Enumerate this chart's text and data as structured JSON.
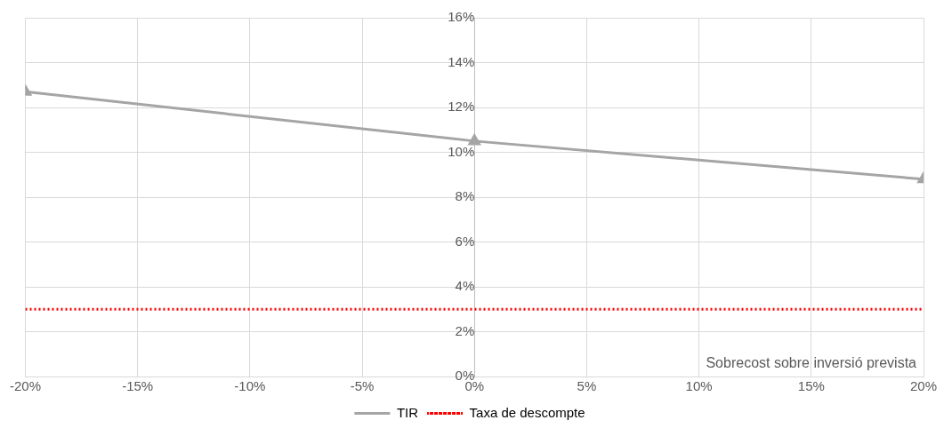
{
  "chart_data": {
    "type": "line",
    "xlabel": "Sobrecost sobre inversió prevista",
    "x": [
      -20,
      0,
      20
    ],
    "series": [
      {
        "name": "TIR",
        "color": "#a5a5a5",
        "values": [
          12.7,
          10.5,
          8.8
        ],
        "marker": "triangle",
        "line_style": "solid"
      },
      {
        "name": "Taxa de descompte",
        "color": "#ff0000",
        "values": [
          3,
          3,
          3
        ],
        "marker": "none",
        "line_style": "dotted"
      }
    ],
    "xlim": [
      -20,
      20
    ],
    "xticks": [
      {
        "value": -20,
        "label": "-20%"
      },
      {
        "value": -15,
        "label": "-15%"
      },
      {
        "value": -10,
        "label": "-10%"
      },
      {
        "value": -5,
        "label": "-5%"
      },
      {
        "value": 0,
        "label": "0%"
      },
      {
        "value": 5,
        "label": "5%"
      },
      {
        "value": 10,
        "label": "10%"
      },
      {
        "value": 15,
        "label": "15%"
      },
      {
        "value": 20,
        "label": "20%"
      }
    ],
    "ylim": [
      0,
      16
    ],
    "yticks": [
      {
        "value": 0,
        "label": "0%"
      },
      {
        "value": 2,
        "label": "2%"
      },
      {
        "value": 4,
        "label": "4%"
      },
      {
        "value": 6,
        "label": "6%"
      },
      {
        "value": 8,
        "label": "8%"
      },
      {
        "value": 10,
        "label": "10%"
      },
      {
        "value": 12,
        "label": "12%"
      },
      {
        "value": 14,
        "label": "14%"
      },
      {
        "value": 16,
        "label": "16%"
      }
    ],
    "grid": true,
    "legend": "bottom"
  }
}
